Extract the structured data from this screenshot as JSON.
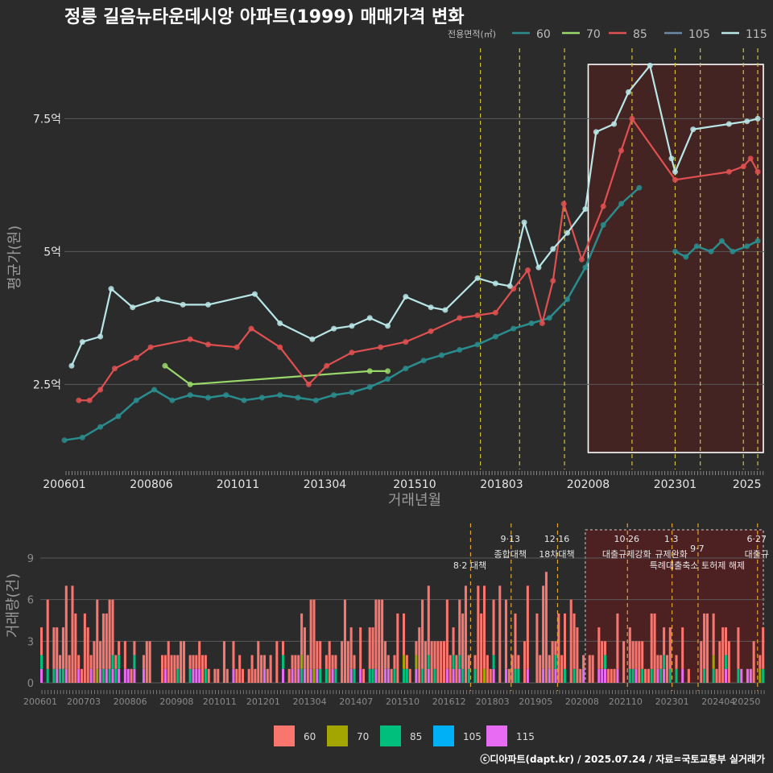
{
  "title": "정릉 길음뉴타운데시앙 아파트(1999) 매매가격 변화",
  "caption": "ⓒ디아파트(dapt.kr) / 2025.07.24 / 자료=국토교통부 실거래가",
  "legend_title": "전용면적(㎡)",
  "colors": {
    "s60": "#2a8c8c",
    "s70": "#9ad86a",
    "s85": "#e05050",
    "s105": "#6c8aa8",
    "s115": "#b9e6e6",
    "b60": "#f8766d",
    "b70": "#a3a500",
    "b85": "#00bf7d",
    "b105": "#00b0f6",
    "b115": "#e76bf3",
    "highlight": "#5a1e1e",
    "vline": "#d4c238"
  },
  "chart_data": [
    {
      "type": "line",
      "title": "정릉 길음뉴타운데시앙 아파트(1999) 매매가격 변화",
      "xlabel": "거래년월",
      "ylabel": "평균가(원)",
      "xlim": [
        2006.0,
        2025.5
      ],
      "ylim": [
        0.9,
        8.9
      ],
      "y_unit": "억",
      "yticks": [
        {
          "v": 2.5,
          "label": "2.5억"
        },
        {
          "v": 5,
          "label": "5억"
        },
        {
          "v": 7.5,
          "label": "7.5억"
        }
      ],
      "xticks": [
        {
          "v": 2006.0,
          "label": "200601"
        },
        {
          "v": 2008.42,
          "label": "200806"
        },
        {
          "v": 2010.83,
          "label": "201011"
        },
        {
          "v": 2013.25,
          "label": "201304"
        },
        {
          "v": 2015.75,
          "label": "201510"
        },
        {
          "v": 2018.17,
          "label": "201803"
        },
        {
          "v": 2020.58,
          "label": "202008"
        },
        {
          "v": 2023.0,
          "label": "202301"
        },
        {
          "v": 2025.0,
          "label": "2025"
        }
      ],
      "vlines": [
        2017.58,
        2018.67,
        2019.92,
        2021.8,
        2023.0,
        2023.7,
        2024.9,
        2025.3
      ],
      "highlight": [
        2020.58,
        2025.5
      ],
      "series": [
        {
          "name": "60",
          "color": "#2a8c8c",
          "x": [
            2006.0,
            2006.5,
            2007.0,
            2007.5,
            2008.0,
            2008.5,
            2009.0,
            2009.5,
            2010.0,
            2010.5,
            2011.0,
            2011.5,
            2012.0,
            2012.5,
            2013.0,
            2013.5,
            2014.0,
            2014.5,
            2015.0,
            2015.5,
            2016.0,
            2016.5,
            2017.0,
            2017.5,
            2018.0,
            2018.5,
            2019.0,
            2019.5,
            2020.0,
            2020.5,
            2021.0,
            2021.5,
            2022.0
          ],
          "y": [
            1.45,
            1.5,
            1.7,
            1.9,
            2.2,
            2.4,
            2.2,
            2.3,
            2.25,
            2.3,
            2.2,
            2.25,
            2.3,
            2.25,
            2.2,
            2.3,
            2.35,
            2.45,
            2.6,
            2.8,
            2.95,
            3.05,
            3.15,
            3.25,
            3.4,
            3.55,
            3.65,
            3.75,
            4.1,
            4.7,
            5.5,
            5.9,
            6.2
          ]
        },
        {
          "name": "60",
          "color": "#2a8c8c",
          "x": [
            2023.0,
            2023.3,
            2023.6,
            2024.0,
            2024.3,
            2024.6,
            2025.0,
            2025.3
          ],
          "y": [
            5.0,
            4.9,
            5.1,
            5.0,
            5.2,
            5.0,
            5.1,
            5.2
          ]
        },
        {
          "name": "70",
          "color": "#9ad86a",
          "x": [
            2008.8,
            2009.5,
            2014.5,
            2015.0
          ],
          "y": [
            2.85,
            2.5,
            2.75,
            2.75
          ]
        },
        {
          "name": "85",
          "color": "#e05050",
          "x": [
            2006.4,
            2006.7,
            2007.0,
            2007.4,
            2008.0,
            2008.4,
            2009.5,
            2010.0,
            2010.8,
            2011.2,
            2012.0,
            2012.8,
            2013.3,
            2014.0,
            2014.8,
            2015.5,
            2016.2,
            2017.0,
            2017.5,
            2018.0,
            2018.5,
            2018.9,
            2019.3,
            2019.6,
            2019.9,
            2020.4,
            2021.0,
            2021.5,
            2021.8,
            2023.0,
            2024.5,
            2024.9,
            2025.1,
            2025.3
          ],
          "y": [
            2.2,
            2.2,
            2.4,
            2.8,
            3.0,
            3.2,
            3.35,
            3.25,
            3.2,
            3.55,
            3.2,
            2.5,
            2.85,
            3.1,
            3.2,
            3.3,
            3.5,
            3.75,
            3.8,
            3.85,
            4.3,
            4.65,
            3.65,
            4.45,
            5.9,
            4.85,
            5.85,
            6.9,
            7.5,
            6.35,
            6.5,
            6.6,
            6.75,
            6.5
          ]
        },
        {
          "name": "105",
          "color": "#6c8aa8",
          "x": [],
          "y": []
        },
        {
          "name": "115",
          "color": "#b9e6e6",
          "x": [
            2006.2,
            2006.5,
            2007.0,
            2007.3,
            2007.9,
            2008.6,
            2009.3,
            2010.0,
            2011.3,
            2012.0,
            2012.9,
            2013.5,
            2014.0,
            2014.5,
            2015.0,
            2015.5,
            2016.2,
            2016.6,
            2017.5,
            2018.0,
            2018.4,
            2018.8,
            2019.2,
            2019.6,
            2020.0,
            2020.5,
            2020.8,
            2021.3,
            2021.7,
            2022.3,
            2022.9,
            2023.0,
            2023.5,
            2024.5,
            2025.0,
            2025.3
          ],
          "y": [
            2.85,
            3.3,
            3.4,
            4.3,
            3.95,
            4.1,
            4.0,
            4.0,
            4.2,
            3.65,
            3.35,
            3.55,
            3.6,
            3.75,
            3.6,
            4.15,
            3.95,
            3.9,
            4.5,
            4.4,
            4.35,
            5.55,
            4.7,
            5.05,
            5.35,
            5.8,
            7.25,
            7.4,
            8.0,
            8.5,
            6.75,
            6.5,
            7.3,
            7.4,
            7.45,
            7.5
          ]
        }
      ]
    },
    {
      "type": "bar",
      "title": "",
      "xlabel": "",
      "ylabel": "거래량(건)",
      "xlim": [
        2006.0,
        2025.5
      ],
      "ylim": [
        0,
        10
      ],
      "yticks": [
        {
          "v": 0,
          "label": "0"
        },
        {
          "v": 3,
          "label": "3"
        },
        {
          "v": 6,
          "label": "6"
        },
        {
          "v": 9,
          "label": "9"
        }
      ],
      "xticks": [
        {
          "v": 2006.0,
          "label": "200601"
        },
        {
          "v": 2007.17,
          "label": "200703"
        },
        {
          "v": 2008.42,
          "label": "200806"
        },
        {
          "v": 2009.67,
          "label": "200908"
        },
        {
          "v": 2010.83,
          "label": "201011"
        },
        {
          "v": 2012.0,
          "label": "201201"
        },
        {
          "v": 2013.25,
          "label": "201304"
        },
        {
          "v": 2014.5,
          "label": "201407"
        },
        {
          "v": 2015.75,
          "label": "201510"
        },
        {
          "v": 2017.0,
          "label": "201612"
        },
        {
          "v": 2018.17,
          "label": "201803"
        },
        {
          "v": 2019.33,
          "label": "201905"
        },
        {
          "v": 2020.58,
          "label": "202008"
        },
        {
          "v": 2021.75,
          "label": "202110"
        },
        {
          "v": 2023.0,
          "label": "202301"
        },
        {
          "v": 2024.25,
          "label": "202404"
        },
        {
          "v": 2025.0,
          "label": "20250"
        }
      ],
      "highlight": [
        2020.58,
        2025.5
      ],
      "legend": [
        "60",
        "70",
        "85",
        "105",
        "115"
      ],
      "series_names": [
        "60",
        "70",
        "85",
        "105",
        "115"
      ],
      "bar_colors": [
        "#f8766d",
        "#a3a500",
        "#00bf7d",
        "#00b0f6",
        "#e76bf3"
      ],
      "annotations": [
        {
          "x": 2017.58,
          "top": "",
          "bottom": "8·2 대책",
          "row": 1
        },
        {
          "x": 2018.67,
          "top": "9·13",
          "bottom": "종합대책",
          "row": 0
        },
        {
          "x": 2019.92,
          "top": "12·16",
          "bottom": "18차대책",
          "row": 0
        },
        {
          "x": 2021.8,
          "top": "10·26",
          "bottom": "대출규제강화",
          "row": 0
        },
        {
          "x": 2023.0,
          "top": "1·3",
          "bottom": "규제완화",
          "row": 0
        },
        {
          "x": 2023.7,
          "top": "9·7",
          "bottom": "특례대출축소 토허제 해제",
          "row": 1
        },
        {
          "x": 2025.3,
          "top": "6·27",
          "bottom": "대출규",
          "row": 0
        }
      ]
    }
  ]
}
